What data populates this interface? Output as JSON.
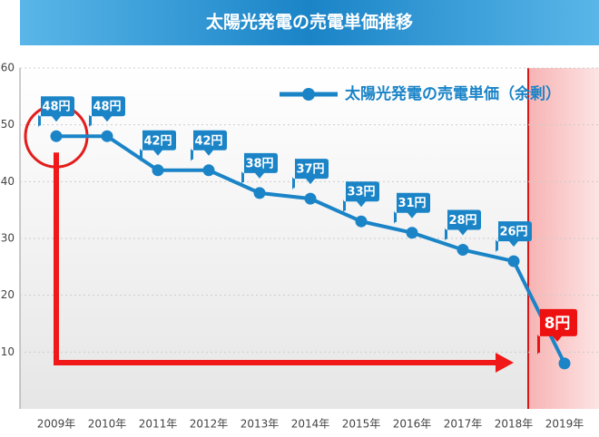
{
  "chart_data": {
    "type": "line",
    "title": "太陽光発電の売電単価推移",
    "categories": [
      "2009年",
      "2010年",
      "2011年",
      "2012年",
      "2013年",
      "2014年",
      "2015年",
      "2016年",
      "2017年",
      "2018年",
      "2019年"
    ],
    "series": [
      {
        "name": "太陽光発電の売電単価（余剰）",
        "color": "#1a84c7",
        "values": [
          48,
          48,
          42,
          42,
          38,
          37,
          33,
          31,
          28,
          26,
          8
        ],
        "value_labels": [
          "48円",
          "48円",
          "42円",
          "42円",
          "38円",
          "37円",
          "33円",
          "31円",
          "28円",
          "26円",
          "8円"
        ]
      }
    ],
    "ylim": [
      0,
      60
    ],
    "yticks": [
      10,
      20,
      30,
      40,
      50,
      60
    ],
    "grid": true
  }
}
